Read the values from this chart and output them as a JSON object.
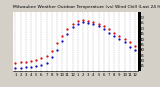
{
  "title": "Milwaukee Weather Outdoor Temperature (vs) Wind Chill (Last 24 Hours)",
  "title_fontsize": 3.2,
  "bg_color": "#d4d0c8",
  "plot_bg_color": "#ffffff",
  "grid_color": "#888888",
  "temp_color": "#dd0000",
  "windchill_color": "#0000cc",
  "xlabel_fontsize": 2.8,
  "ylabel_fontsize": 2.8,
  "ylim": [
    10,
    65
  ],
  "yticks": [
    15,
    20,
    25,
    30,
    35,
    40,
    45,
    50,
    55,
    60
  ],
  "x_hours": [
    0,
    1,
    2,
    3,
    4,
    5,
    6,
    7,
    8,
    9,
    10,
    11,
    12,
    13,
    14,
    15,
    16,
    17,
    18,
    19,
    20,
    21,
    22,
    23
  ],
  "x_labels": [
    "1",
    "2",
    "3",
    "4",
    "5",
    "6",
    "7",
    "8",
    "9",
    "10",
    "11",
    "12",
    "1",
    "2",
    "3",
    "4",
    "5",
    "6",
    "7",
    "8",
    "9",
    "10",
    "11",
    "12"
  ],
  "temp_values": [
    18,
    19,
    19,
    20,
    21,
    22,
    24,
    29,
    36,
    43,
    49,
    54,
    57,
    58,
    57,
    56,
    54,
    52,
    49,
    46,
    43,
    40,
    37,
    34
  ],
  "windchill_values": [
    13,
    13,
    14,
    14,
    15,
    16,
    18,
    23,
    30,
    38,
    45,
    51,
    54,
    56,
    55,
    54,
    52,
    49,
    46,
    43,
    40,
    37,
    33,
    30
  ],
  "right_bar_color": "#000000",
  "right_bar_width": 2.5
}
